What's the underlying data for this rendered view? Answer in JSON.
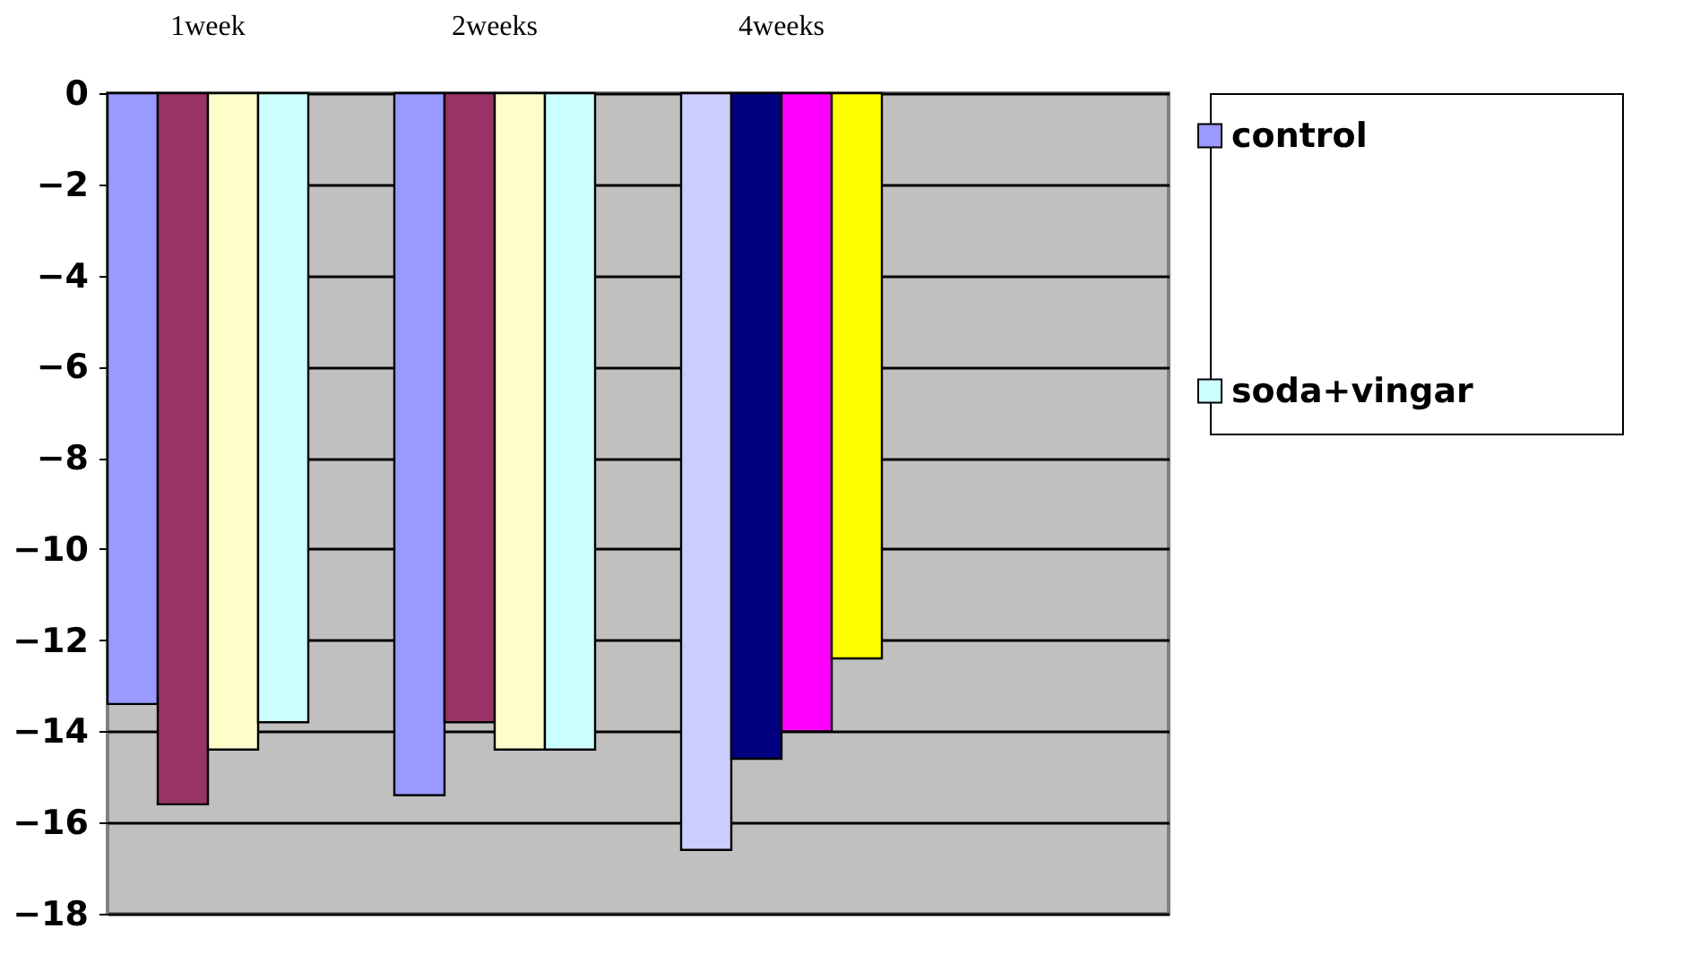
{
  "chart_data": {
    "type": "bar",
    "categories": [
      "1week",
      "2weeks",
      "4weeks",
      null
    ],
    "series": [
      {
        "name": "control",
        "color": "#9999ff",
        "colors": [
          "#9999ff",
          "#9999ff",
          "#ccccff",
          null
        ],
        "values": [
          -13.4,
          -15.4,
          -16.6,
          null
        ]
      },
      {
        "colors": [
          "#993366",
          "#993366",
          "#000080",
          null
        ],
        "values": [
          -15.6,
          -13.8,
          -14.6,
          null
        ]
      },
      {
        "colors": [
          "#ffffcc",
          "#ffffcc",
          "#ff00ff",
          null
        ],
        "values": [
          -14.4,
          -14.4,
          -14.0,
          null
        ]
      },
      {
        "name": "soda+vingar",
        "color": "#ccffff",
        "colors": [
          "#ccffff",
          "#ccffff",
          "#ffff00",
          null
        ],
        "values": [
          -13.8,
          -14.4,
          -12.4,
          null
        ]
      }
    ],
    "ylim": [
      -18,
      0
    ],
    "yticks": [
      -18,
      -16,
      -14,
      -12,
      -10,
      -8,
      -6,
      -4,
      -2,
      0
    ],
    "grid": "y",
    "legend": "right"
  }
}
